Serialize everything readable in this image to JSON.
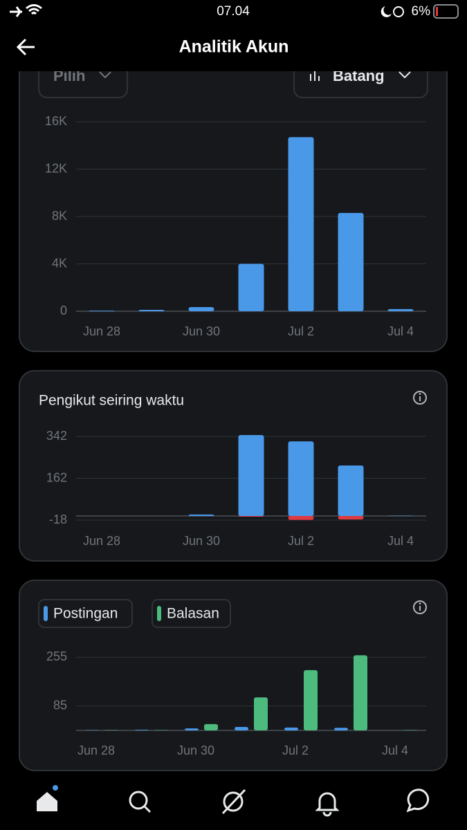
{
  "status_bar": {
    "time": "07.04",
    "battery": "6%"
  },
  "header": {
    "title": "Analitik Akun"
  },
  "chart_controls": [
    "Pilih",
    "Batang"
  ],
  "chart_data": [
    {
      "type": "bar",
      "categories": [
        "Jun 28",
        null,
        "Jun 30",
        null,
        "Jul 2",
        null,
        "Jul 4"
      ],
      "series": [
        {
          "color": "#4a99e9",
          "values": [
            50,
            120,
            350,
            4000,
            14700,
            8300,
            180
          ]
        }
      ],
      "ylim": [
        0,
        16000
      ],
      "yticks": [
        0,
        {
          "value": 4000,
          "label": "4K"
        },
        {
          "value": 8000,
          "label": "8K"
        },
        {
          "value": 12000,
          "label": "12K"
        },
        {
          "value": 16000,
          "label": "16K"
        }
      ],
      "grid": true
    },
    {
      "type": "bar",
      "title": "Pengikut seiring waktu",
      "categories": [
        "Jun 28",
        null,
        "Jun 30",
        null,
        "Jul 2",
        null,
        "Jul 4"
      ],
      "series": [
        {
          "color": "#4a99e9",
          "values": [
            0,
            0,
            6,
            348,
            321,
            217,
            1
          ]
        },
        {
          "color": "#e0393e",
          "values": [
            0,
            0,
            0,
            -3,
            -17,
            -15,
            0
          ]
        }
      ],
      "ylim": [
        -18,
        360
      ],
      "yticks": [
        -18,
        162,
        342
      ],
      "grid": true
    },
    {
      "type": "bar",
      "categories": [
        "Jun 28",
        null,
        "Jun 30",
        null,
        "Jul 2",
        null,
        "Jul 4"
      ],
      "series": [
        {
          "name": "Postingan",
          "color": "#4a99e9",
          "values": [
            1,
            2,
            7,
            12,
            10,
            9,
            0
          ]
        },
        {
          "name": "Balasan",
          "color": "#4dbb7e",
          "values": [
            1,
            1,
            22,
            115,
            210,
            262,
            1
          ]
        }
      ],
      "ylim": [
        0,
        270
      ],
      "yticks": [
        85,
        255
      ],
      "grid": true
    }
  ]
}
